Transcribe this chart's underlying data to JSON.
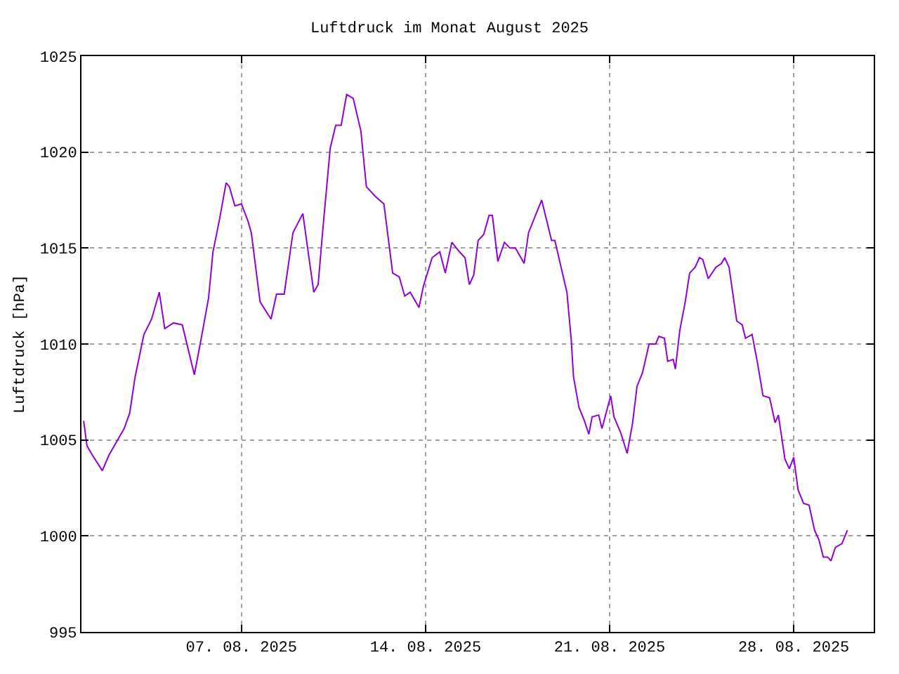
{
  "chart_data": {
    "type": "line",
    "title": "Luftdruck im Monat August 2025",
    "ylabel": "Luftdruck [hPa]",
    "x": [
      "2025-08-01T00:00",
      "2025-08-01T03:00",
      "2025-08-01T07:00",
      "2025-08-01T17:00",
      "2025-08-01T23:00",
      "2025-08-02T13:00",
      "2025-08-02T18:00",
      "2025-08-02T23:00",
      "2025-08-03T07:00",
      "2025-08-03T14:00",
      "2025-08-03T21:00",
      "2025-08-04T02:00",
      "2025-08-04T10:00",
      "2025-08-04T18:00",
      "2025-08-05T05:00",
      "2025-08-05T11:00",
      "2025-08-05T18:00",
      "2025-08-05T22:00",
      "2025-08-06T04:00",
      "2025-08-06T10:00",
      "2025-08-06T13:00",
      "2025-08-06T18:00",
      "2025-08-07T00:00",
      "2025-08-07T06:00",
      "2025-08-07T09:00",
      "2025-08-07T17:00",
      "2025-08-08T03:00",
      "2025-08-08T08:00",
      "2025-08-08T15:00",
      "2025-08-08T23:00",
      "2025-08-09T08:00",
      "2025-08-09T18:00",
      "2025-08-09T22:00",
      "2025-08-10T02:00",
      "2025-08-10T09:00",
      "2025-08-10T14:00",
      "2025-08-10T19:00",
      "2025-08-11T00:00",
      "2025-08-11T06:00",
      "2025-08-11T13:00",
      "2025-08-11T18:00",
      "2025-08-12T02:00",
      "2025-08-12T10:00",
      "2025-08-12T18:00",
      "2025-08-13T00:00",
      "2025-08-13T05:00",
      "2025-08-13T10:00",
      "2025-08-13T18:00",
      "2025-08-13T22:00",
      "2025-08-14T06:00",
      "2025-08-14T13:00",
      "2025-08-14T18:00",
      "2025-08-15T00:00",
      "2025-08-15T07:00",
      "2025-08-15T12:00",
      "2025-08-15T16:00",
      "2025-08-15T20:00",
      "2025-08-16T00:00",
      "2025-08-16T05:00",
      "2025-08-16T10:00",
      "2025-08-16T13:00",
      "2025-08-16T18:00",
      "2025-08-17T00:00",
      "2025-08-17T05:00",
      "2025-08-17T10:00",
      "2025-08-17T18:00",
      "2025-08-17T22:00",
      "2025-08-18T05:00",
      "2025-08-18T10:00",
      "2025-08-18T19:00",
      "2025-08-18T22:00",
      "2025-08-19T09:00",
      "2025-08-19T13:00",
      "2025-08-19T15:00",
      "2025-08-19T20:00",
      "2025-08-20T01:00",
      "2025-08-20T05:00",
      "2025-08-20T08:00",
      "2025-08-20T14:00",
      "2025-08-20T17:00",
      "2025-08-21T01:00",
      "2025-08-21T04:00",
      "2025-08-21T10:00",
      "2025-08-21T16:00",
      "2025-08-21T21:00",
      "2025-08-22T01:00",
      "2025-08-22T06:00",
      "2025-08-22T12:00",
      "2025-08-22T18:00",
      "2025-08-22T21:00",
      "2025-08-23T02:00",
      "2025-08-23T05:00",
      "2025-08-23T10:00",
      "2025-08-23T12:00",
      "2025-08-23T16:00",
      "2025-08-23T21:00",
      "2025-08-24T01:00",
      "2025-08-24T06:00",
      "2025-08-24T10:00",
      "2025-08-24T13:00",
      "2025-08-24T18:00",
      "2025-08-25T01:00",
      "2025-08-25T06:00",
      "2025-08-25T09:00",
      "2025-08-25T13:00",
      "2025-08-25T20:00",
      "2025-08-26T01:00",
      "2025-08-26T04:00",
      "2025-08-26T10:00",
      "2025-08-26T15:00",
      "2025-08-26T20:00",
      "2025-08-27T02:00",
      "2025-08-27T07:00",
      "2025-08-27T10:00",
      "2025-08-27T16:00",
      "2025-08-27T20:00",
      "2025-08-28T00:00",
      "2025-08-28T04:00",
      "2025-08-28T09:00",
      "2025-08-28T14:00",
      "2025-08-28T19:00",
      "2025-08-28T23:00",
      "2025-08-29T03:00",
      "2025-08-29T07:00",
      "2025-08-29T10:00",
      "2025-08-29T14:00",
      "2025-08-29T20:00",
      "2025-08-30T01:00"
    ],
    "series": [
      {
        "color": "#9400d3",
        "values": [
          1006.0,
          1004.7,
          1004.3,
          1003.4,
          1004.2,
          1005.6,
          1006.4,
          1008.3,
          1010.5,
          1011.3,
          1012.7,
          1010.8,
          1011.1,
          1011.0,
          1008.4,
          1010.2,
          1012.4,
          1014.8,
          1016.5,
          1018.4,
          1018.2,
          1017.2,
          1017.3,
          1016.4,
          1015.8,
          1012.2,
          1011.3,
          1012.6,
          1012.6,
          1015.8,
          1016.8,
          1012.7,
          1013.1,
          1015.8,
          1020.2,
          1021.4,
          1021.4,
          1023.0,
          1022.8,
          1021.1,
          1018.2,
          1017.7,
          1017.3,
          1013.7,
          1013.5,
          1012.5,
          1012.7,
          1011.9,
          1013.0,
          1014.5,
          1014.8,
          1013.7,
          1015.3,
          1014.8,
          1014.5,
          1013.1,
          1013.6,
          1015.4,
          1015.7,
          1016.7,
          1016.7,
          1014.3,
          1015.3,
          1015.0,
          1015.0,
          1014.2,
          1015.8,
          1016.8,
          1017.5,
          1015.4,
          1015.4,
          1012.7,
          1010.2,
          1008.3,
          1006.7,
          1006.0,
          1005.3,
          1006.2,
          1006.3,
          1005.6,
          1007.3,
          1006.2,
          1005.4,
          1004.3,
          1005.9,
          1007.8,
          1008.5,
          1010.0,
          1010.0,
          1010.4,
          1010.3,
          1009.1,
          1009.2,
          1008.7,
          1010.7,
          1012.2,
          1013.7,
          1014.0,
          1014.5,
          1014.4,
          1013.4,
          1014.0,
          1014.2,
          1014.5,
          1014.0,
          1011.2,
          1011.0,
          1010.3,
          1010.5,
          1009.0,
          1007.3,
          1007.2,
          1005.9,
          1006.3,
          1004.0,
          1003.5,
          1004.1,
          1002.4,
          1001.7,
          1001.6,
          1000.3,
          999.8,
          998.9,
          998.9,
          998.7,
          999.4,
          999.6,
          1000.3
        ]
      }
    ],
    "xlim": [
      "2025-07-31T22:00",
      "2025-08-31T01:00"
    ],
    "xticks": [
      {
        "value": "2025-08-07",
        "label": "07. 08. 2025"
      },
      {
        "value": "2025-08-14",
        "label": "14. 08. 2025"
      },
      {
        "value": "2025-08-21",
        "label": "21. 08. 2025"
      },
      {
        "value": "2025-08-28",
        "label": "28. 08. 2025"
      }
    ],
    "ylim": [
      995,
      1025
    ],
    "yticks": [
      995,
      1000,
      1005,
      1010,
      1015,
      1020,
      1025
    ],
    "grid": true,
    "marker": "none",
    "line_style": "solid"
  }
}
